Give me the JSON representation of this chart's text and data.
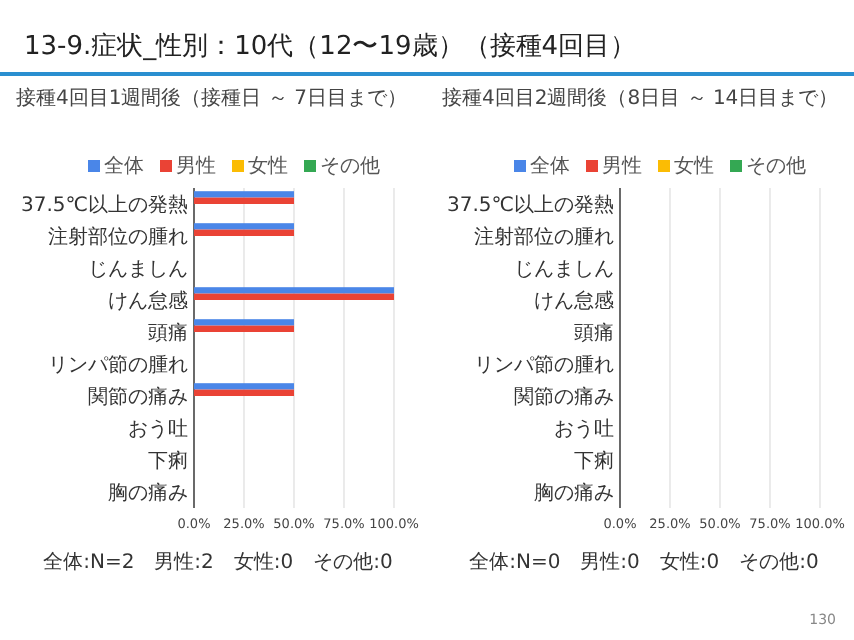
{
  "chart_data": [
    {
      "type": "bar",
      "orientation": "horizontal",
      "title": "13-9.症状_性別：10代（12〜19歳）（接種4回目）",
      "subtitle": "接種4回目1週間後（接種日 ～ 7日目まで）",
      "categories": [
        "37.5℃以上の発熱",
        "注射部位の腫れ",
        "じんましん",
        "けん怠感",
        "頭痛",
        "リンパ節の腫れ",
        "関節の痛み",
        "おう吐",
        "下痢",
        "胸の痛み"
      ],
      "series": [
        {
          "name": "全体",
          "color": "#4a86e8",
          "values": [
            50,
            50,
            0,
            100,
            50,
            0,
            50,
            0,
            0,
            0
          ]
        },
        {
          "name": "男性",
          "color": "#ea4335",
          "values": [
            50,
            50,
            0,
            100,
            50,
            0,
            50,
            0,
            0,
            0
          ]
        },
        {
          "name": "女性",
          "color": "#fbbc04",
          "values": [
            0,
            0,
            0,
            0,
            0,
            0,
            0,
            0,
            0,
            0
          ]
        },
        {
          "name": "その他",
          "color": "#34a853",
          "values": [
            0,
            0,
            0,
            0,
            0,
            0,
            0,
            0,
            0,
            0
          ]
        }
      ],
      "xlim": [
        0,
        100
      ],
      "xticks": [
        {
          "value": 0,
          "label": "0.0%"
        },
        {
          "value": 25,
          "label": "25.0%"
        },
        {
          "value": 50,
          "label": "50.0%"
        },
        {
          "value": 75,
          "label": "75.0%"
        },
        {
          "value": 100,
          "label": "100.0%"
        }
      ],
      "grid": "x",
      "legend": "top",
      "annotations": [
        "全体:N=2　男性:2　女性:0　その他:0"
      ]
    },
    {
      "type": "bar",
      "orientation": "horizontal",
      "subtitle": "接種4回目2週間後（8日目 ～ 14日目まで）",
      "categories": [
        "37.5℃以上の発熱",
        "注射部位の腫れ",
        "じんましん",
        "けん怠感",
        "頭痛",
        "リンパ節の腫れ",
        "関節の痛み",
        "おう吐",
        "下痢",
        "胸の痛み"
      ],
      "series": [
        {
          "name": "全体",
          "color": "#4a86e8",
          "values": [
            0,
            0,
            0,
            0,
            0,
            0,
            0,
            0,
            0,
            0
          ]
        },
        {
          "name": "男性",
          "color": "#ea4335",
          "values": [
            0,
            0,
            0,
            0,
            0,
            0,
            0,
            0,
            0,
            0
          ]
        },
        {
          "name": "女性",
          "color": "#fbbc04",
          "values": [
            0,
            0,
            0,
            0,
            0,
            0,
            0,
            0,
            0,
            0
          ]
        },
        {
          "name": "その他",
          "color": "#34a853",
          "values": [
            0,
            0,
            0,
            0,
            0,
            0,
            0,
            0,
            0,
            0
          ]
        }
      ],
      "xlim": [
        0,
        100
      ],
      "xticks": [
        {
          "value": 0,
          "label": "0.0%"
        },
        {
          "value": 25,
          "label": "25.0%"
        },
        {
          "value": 50,
          "label": "50.0%"
        },
        {
          "value": 75,
          "label": "75.0%"
        },
        {
          "value": 100,
          "label": "100.0%"
        }
      ],
      "grid": "x",
      "legend": "top",
      "annotations": [
        "全体:N=0　男性:0　女性:0　その他:0",
        "130"
      ]
    }
  ]
}
